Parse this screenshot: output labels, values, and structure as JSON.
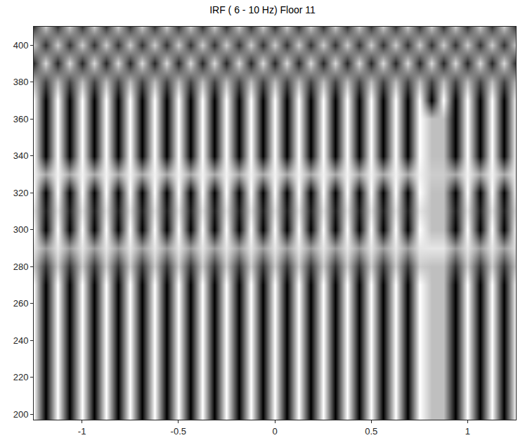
{
  "chart_data": {
    "type": "heatmap",
    "title": "IRF ( 6 - 10 Hz) Floor 11",
    "x": [
      -1.25,
      -1.1875,
      -1.125,
      -1.0625,
      -1,
      -0.9375,
      -0.875,
      -0.8125,
      -0.75,
      -0.6875,
      -0.625,
      -0.5625,
      -0.5,
      -0.4375,
      -0.375,
      -0.3125,
      -0.25,
      -0.1875,
      -0.125,
      -0.0625,
      0,
      0.0625,
      0.125,
      0.1875,
      0.25,
      0.3125,
      0.375,
      0.4375,
      0.5,
      0.5625,
      0.625,
      0.6875,
      0.75,
      0.8125,
      0.875,
      0.9375,
      1,
      1.0625,
      1.125,
      1.1875,
      1.25
    ],
    "y": [
      200,
      210,
      220,
      230,
      240,
      250,
      260,
      270,
      280,
      290,
      300,
      310,
      320,
      330,
      340,
      350,
      360,
      370,
      380,
      390,
      400,
      410
    ],
    "z": [
      [
        1,
        -1,
        1,
        -1,
        1,
        -1,
        1,
        -1,
        1,
        -1,
        1,
        -1,
        1,
        -1,
        1,
        -1,
        1,
        -1,
        1,
        -1,
        1,
        -1,
        1,
        -1,
        1,
        -1,
        1,
        -1,
        1,
        -1,
        1,
        -1,
        1,
        0.5,
        0.5,
        -1,
        1,
        -1,
        1,
        -1,
        1
      ],
      [
        1,
        -1,
        1,
        -1,
        1,
        -1,
        1,
        -1,
        1,
        -1,
        1,
        -1,
        1,
        -1,
        1,
        -1,
        1,
        -1,
        1,
        -1,
        1,
        -1,
        1,
        -1,
        1,
        -1,
        1,
        -1,
        1,
        -1,
        1,
        -1,
        1,
        0.5,
        0.5,
        -1,
        1,
        -1,
        1,
        -1,
        1
      ],
      [
        1,
        -1,
        1,
        -1,
        1,
        -1,
        1,
        -1,
        1,
        -1,
        1,
        -1,
        1,
        -1,
        1,
        -1,
        1,
        -1,
        1,
        -1,
        1,
        -1,
        1,
        -1,
        1,
        -1,
        1,
        -1,
        1,
        -1,
        1,
        -1,
        1,
        0.5,
        0.5,
        -1,
        1,
        -1,
        1,
        -1,
        1
      ],
      [
        1,
        -1,
        1,
        -1,
        1,
        -1,
        1,
        -1,
        1,
        -1,
        1,
        -1,
        1,
        -1,
        1,
        -1,
        1,
        -1,
        1,
        -1,
        1,
        -1,
        1,
        -1,
        1,
        -1,
        1,
        -1,
        1,
        -1,
        1,
        -1,
        1,
        0.5,
        0.5,
        -1,
        1,
        -1,
        1,
        -1,
        1
      ],
      [
        1,
        -1,
        1,
        -1,
        1,
        -1,
        1,
        -1,
        1,
        -1,
        1,
        -1,
        1,
        -1,
        1,
        -1,
        1,
        -1,
        1,
        -1,
        1,
        -1,
        1,
        -1,
        1,
        -1,
        1,
        -1,
        1,
        -1,
        1,
        -1,
        1,
        0.5,
        0.5,
        -1,
        1,
        -1,
        1,
        -1,
        1
      ],
      [
        1,
        -1,
        1,
        -1,
        1,
        -1,
        1,
        -1,
        1,
        -1,
        1,
        -1,
        1,
        -1,
        1,
        -1,
        1,
        -1,
        1,
        -1,
        1,
        -1,
        1,
        -1,
        1,
        -1,
        1,
        -1,
        1,
        -1,
        1,
        -1,
        1,
        0.5,
        0.5,
        -1,
        1,
        -1,
        1,
        -1,
        1
      ],
      [
        1,
        -1,
        1,
        -1,
        1,
        -1,
        1,
        -1,
        1,
        -1,
        1,
        -1,
        1,
        -1,
        1,
        -1,
        1,
        -1,
        1,
        -1,
        1,
        -1,
        1,
        -1,
        1,
        -1,
        1,
        -1,
        1,
        -1,
        1,
        -1,
        1,
        0.5,
        0.5,
        -1,
        1,
        -1,
        1,
        -1,
        1
      ],
      [
        1,
        -1,
        1,
        -1,
        1,
        -1,
        1,
        -1,
        1,
        -1,
        1,
        -1,
        1,
        -1,
        1,
        -1,
        1,
        -1,
        1,
        -1,
        1,
        -1,
        1,
        -1,
        1,
        -1,
        1,
        -1,
        1,
        -1,
        1,
        -1,
        1,
        0.5,
        0.5,
        -1,
        1,
        -1,
        1,
        -1,
        1
      ],
      [
        0.6,
        -0.6,
        0.6,
        -0.6,
        0.6,
        -0.6,
        0.6,
        -0.6,
        0.6,
        -0.6,
        0.6,
        -0.6,
        0.6,
        -0.6,
        0.6,
        -0.6,
        0.6,
        -0.6,
        0.6,
        -0.6,
        0.6,
        -0.6,
        0.6,
        -0.6,
        0.6,
        -0.6,
        0.6,
        -0.6,
        0.6,
        -0.6,
        0.6,
        -0.6,
        0.6,
        0.5,
        0.5,
        -0.6,
        0.6,
        -0.6,
        0.6,
        -0.6,
        0.6
      ],
      [
        0.8,
        0.2,
        0.8,
        0.2,
        0.8,
        0.2,
        0.8,
        0.2,
        0.8,
        0.2,
        0.8,
        0.2,
        0.8,
        0.2,
        0.8,
        0.2,
        0.8,
        0.2,
        0.8,
        0.2,
        0.8,
        0.2,
        0.8,
        0.2,
        0.8,
        0.2,
        0.8,
        0.2,
        0.8,
        0.2,
        0.8,
        0.2,
        0.8,
        0.8,
        0.8,
        0.2,
        0.8,
        0.2,
        0.8,
        0.2,
        0.8
      ],
      [
        1,
        -1,
        1,
        -1,
        1,
        -1,
        1,
        -1,
        1,
        -1,
        1,
        -1,
        1,
        -1,
        1,
        -1,
        1,
        -1,
        1,
        -1,
        1,
        -1,
        1,
        -1,
        1,
        -1,
        1,
        -1,
        1,
        -1,
        1,
        -1,
        1,
        0.5,
        0.5,
        -1,
        1,
        -1,
        1,
        -1,
        1
      ],
      [
        0.8,
        -0.8,
        0.8,
        -0.8,
        0.8,
        -0.8,
        0.8,
        -0.8,
        0.8,
        -0.8,
        0.8,
        -0.8,
        0.8,
        -0.8,
        0.8,
        -0.8,
        0.8,
        -0.8,
        0.8,
        -0.8,
        0.8,
        -0.8,
        0.8,
        -0.8,
        0.8,
        -0.8,
        0.8,
        -0.8,
        0.8,
        -0.8,
        0.8,
        -0.8,
        0.8,
        0.5,
        0.5,
        -0.8,
        0.8,
        -0.8,
        0.8,
        -0.8,
        0.8
      ],
      [
        1,
        -1,
        1,
        -1,
        1,
        -1,
        1,
        -1,
        1,
        -1,
        1,
        -1,
        1,
        -1,
        1,
        -1,
        1,
        -1,
        1,
        -1,
        1,
        -1,
        1,
        -1,
        1,
        -1,
        1,
        -1,
        1,
        -1,
        1,
        -1,
        1,
        0.5,
        0.5,
        -1,
        1,
        -1,
        1,
        -1,
        1
      ],
      [
        0.9,
        0.3,
        0.9,
        0.3,
        0.9,
        0.3,
        0.9,
        0.3,
        0.9,
        0.3,
        0.9,
        0.3,
        0.9,
        0.3,
        0.9,
        0.3,
        0.9,
        0.3,
        0.9,
        0.3,
        0.9,
        0.3,
        0.9,
        0.3,
        0.9,
        0.3,
        0.9,
        0.3,
        0.9,
        0.3,
        0.9,
        0.3,
        0.9,
        0.6,
        0.6,
        0.3,
        0.9,
        0.3,
        0.9,
        0.3,
        0.9
      ],
      [
        1,
        -1,
        1,
        -1,
        1,
        -1,
        1,
        -1,
        1,
        -1,
        1,
        -1,
        1,
        -1,
        1,
        -1,
        1,
        -1,
        1,
        -1,
        1,
        -1,
        1,
        -1,
        1,
        -1,
        1,
        -1,
        1,
        -1,
        1,
        -1,
        1,
        0.5,
        0.5,
        -1,
        1,
        -1,
        1,
        -1,
        1
      ],
      [
        1,
        -1,
        1,
        -1,
        1,
        -1,
        1,
        -1,
        1,
        -1,
        1,
        -1,
        1,
        -1,
        1,
        -1,
        1,
        -1,
        1,
        -1,
        1,
        -1,
        1,
        -1,
        1,
        -1,
        1,
        -1,
        1,
        -1,
        1,
        -1,
        1,
        0.5,
        0.5,
        -1,
        1,
        -1,
        1,
        -1,
        1
      ],
      [
        1,
        -1,
        1,
        -1,
        1,
        -1,
        1,
        -1,
        1,
        -1,
        1,
        -1,
        1,
        -1,
        1,
        -1,
        1,
        -1,
        1,
        -1,
        1,
        -1,
        1,
        -1,
        1,
        -1,
        1,
        -1,
        1,
        -1,
        1,
        -1,
        1,
        0.5,
        0.5,
        -1,
        1,
        -1,
        1,
        -1,
        1
      ],
      [
        1,
        -1,
        1,
        -1,
        1,
        -1,
        1,
        -1,
        1,
        -1,
        1,
        -1,
        1,
        -1,
        1,
        -1,
        1,
        -1,
        1,
        -1,
        1,
        -1,
        1,
        -1,
        1,
        -1,
        1,
        -1,
        1,
        -1,
        1,
        -1,
        1,
        -1,
        1,
        -1,
        1,
        -1,
        1,
        -1,
        1
      ],
      [
        0.5,
        -0.5,
        0.5,
        -0.5,
        0.5,
        -0.5,
        0.5,
        -0.5,
        0.5,
        -0.5,
        0.5,
        -0.5,
        0.5,
        -0.5,
        0.5,
        -0.5,
        0.5,
        -0.5,
        0.5,
        -0.5,
        0.5,
        -0.5,
        0.5,
        -0.5,
        0.5,
        -0.5,
        0.5,
        -0.5,
        0.5,
        -0.5,
        0.5,
        -0.5,
        0.5,
        -0.5,
        0.5,
        -0.5,
        0.5,
        -0.5,
        0.5,
        -0.5,
        0.5
      ],
      [
        -0.7,
        0.7,
        -0.7,
        0.7,
        -0.7,
        0.7,
        -0.7,
        0.7,
        -0.7,
        0.7,
        -0.7,
        0.7,
        -0.7,
        0.7,
        -0.7,
        0.7,
        -0.7,
        0.7,
        -0.7,
        0.7,
        -0.7,
        0.7,
        -0.7,
        0.7,
        -0.7,
        0.7,
        -0.7,
        0.7,
        -0.7,
        0.7,
        -0.7,
        0.7,
        -0.7,
        0.7,
        -0.7,
        0.7,
        -0.7,
        0.7,
        -0.7,
        0.7,
        -0.7
      ],
      [
        0.6,
        -0.6,
        0.6,
        -0.6,
        0.6,
        -0.6,
        0.6,
        -0.6,
        0.6,
        -0.6,
        0.6,
        -0.6,
        0.6,
        -0.6,
        0.6,
        -0.6,
        0.6,
        -0.6,
        0.6,
        -0.6,
        0.6,
        -0.6,
        0.6,
        -0.6,
        0.6,
        -0.6,
        0.6,
        -0.6,
        0.6,
        -0.6,
        0.6,
        -0.6,
        0.6,
        -0.6,
        0.6,
        -0.6,
        0.6,
        -0.6,
        0.6,
        -0.6,
        0.6
      ],
      [
        -0.6,
        0.6,
        -0.6,
        0.6,
        -0.6,
        0.6,
        -0.6,
        0.6,
        -0.6,
        0.6,
        -0.6,
        0.6,
        -0.6,
        0.6,
        -0.6,
        0.6,
        -0.6,
        0.6,
        -0.6,
        0.6,
        -0.6,
        0.6,
        -0.6,
        0.6,
        -0.6,
        0.6,
        -0.6,
        0.6,
        -0.6,
        0.6,
        -0.6,
        0.6,
        -0.6,
        0.6,
        -0.6,
        0.6,
        -0.6,
        0.6,
        -0.6,
        0.6,
        -0.6
      ]
    ],
    "zlim": [
      -1,
      1
    ],
    "xlim": [
      -1.25,
      1.25
    ],
    "xticks": [
      -1,
      -0.5,
      0,
      0.5,
      1
    ],
    "ylim": [
      197,
      410
    ],
    "yticks": [
      200,
      220,
      240,
      260,
      280,
      300,
      320,
      340,
      360,
      380,
      400
    ],
    "grid": false
  }
}
